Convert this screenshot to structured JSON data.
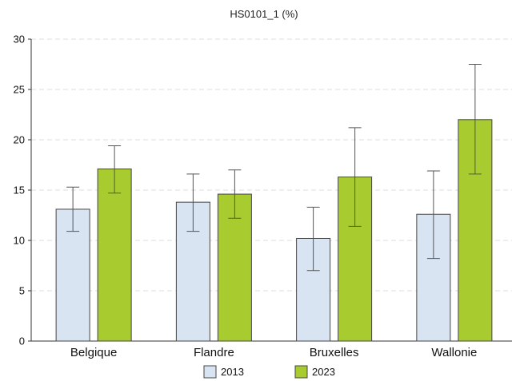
{
  "chart_data": {
    "type": "bar",
    "title": "HS0101_1 (%)",
    "xlabel": "",
    "ylabel": "",
    "categories": [
      "Belgique",
      "Flandre",
      "Bruxelles",
      "Wallonie"
    ],
    "ylim": [
      0,
      30
    ],
    "y_ticks": [
      0,
      5,
      10,
      15,
      20,
      25,
      30
    ],
    "grid": "horizontal-dashed",
    "legend_position": "bottom",
    "series": [
      {
        "name": "2013",
        "color": "#d9e4f2",
        "stroke": "#444444",
        "values": [
          13.1,
          13.8,
          10.2,
          12.6
        ],
        "error_low": [
          10.9,
          10.9,
          7.0,
          8.2
        ],
        "error_high": [
          15.3,
          16.6,
          13.3,
          16.9
        ]
      },
      {
        "name": "2023",
        "color": "#a8cc30",
        "stroke": "#444444",
        "values": [
          17.1,
          14.6,
          16.3,
          22.0
        ],
        "error_low": [
          14.7,
          12.2,
          11.4,
          16.6
        ],
        "error_high": [
          19.4,
          17.0,
          21.2,
          27.5
        ]
      }
    ]
  }
}
